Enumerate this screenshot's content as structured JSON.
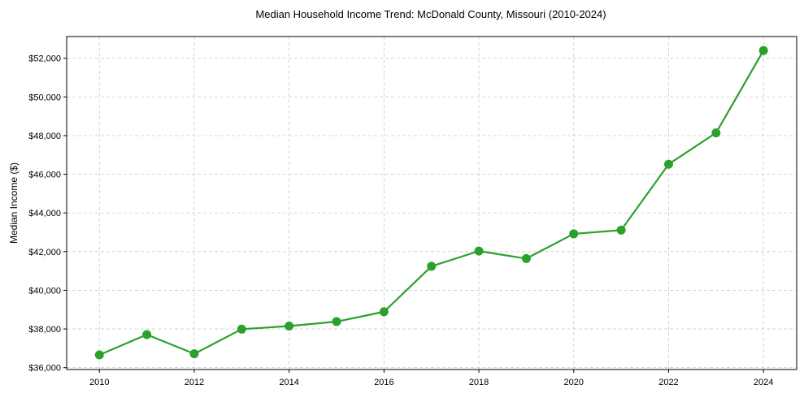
{
  "chart_data": {
    "type": "line",
    "title": "Median Household Income Trend: McDonald County, Missouri (2010-2024)",
    "xlabel": "",
    "ylabel": "Median Income ($)",
    "x": [
      2010,
      2011,
      2012,
      2013,
      2014,
      2015,
      2016,
      2017,
      2018,
      2019,
      2020,
      2021,
      2022,
      2023,
      2024
    ],
    "series": [
      {
        "name": "Median Household Income",
        "color": "#2ca02c",
        "values": [
          36660,
          37710,
          36715,
          37990,
          38150,
          38380,
          38890,
          41240,
          42030,
          41640,
          42920,
          43110,
          46520,
          48140,
          52400
        ]
      }
    ],
    "xlim": [
      2009.31,
      2024.7
    ],
    "ylim": [
      35903,
      53123
    ],
    "xticks": [
      2010,
      2012,
      2014,
      2016,
      2018,
      2020,
      2022,
      2024
    ],
    "xtick_labels": [
      "2010",
      "2012",
      "2014",
      "2016",
      "2018",
      "2020",
      "2022",
      "2024"
    ],
    "yticks": [
      36000,
      38000,
      40000,
      42000,
      44000,
      46000,
      48000,
      50000,
      52000
    ],
    "ytick_labels": [
      "$36,000",
      "$38,000",
      "$40,000",
      "$42,000",
      "$44,000",
      "$46,000",
      "$48,000",
      "$50,000",
      "$52,000"
    ],
    "grid": true,
    "legend": "none"
  }
}
